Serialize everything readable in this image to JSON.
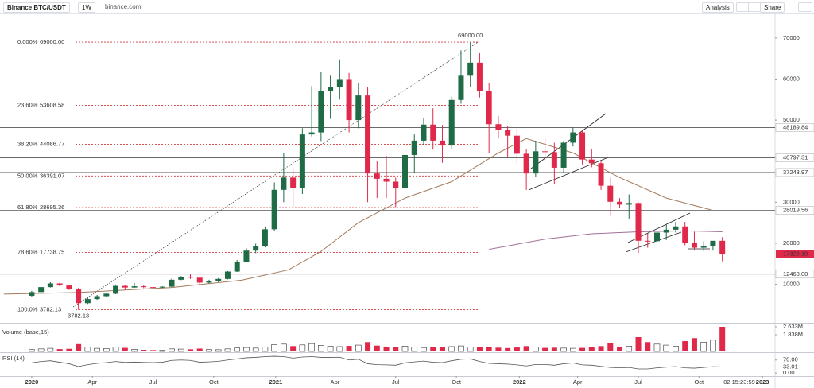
{
  "toolbar": {
    "symbol": "Binance BTC/USDT",
    "interval": "1W",
    "source": "binance.com",
    "analysis": "Analysis",
    "share": "Share"
  },
  "chart_data": [
    {
      "type": "candlestick",
      "x": [
        0,
        2,
        4,
        6,
        8,
        10,
        12,
        14,
        16,
        18,
        20,
        22,
        24,
        26,
        28,
        30,
        32,
        34,
        36,
        38,
        40,
        42,
        44,
        46,
        48,
        50,
        52,
        54,
        56,
        58,
        60,
        62,
        64,
        66,
        68,
        70,
        72,
        74,
        76,
        78,
        80,
        82,
        84,
        86,
        88,
        90,
        92,
        94,
        96,
        98,
        100,
        102,
        104,
        106,
        108,
        110,
        112,
        114,
        116,
        118,
        120,
        122,
        124,
        126,
        128,
        130,
        132,
        134,
        136,
        138,
        140,
        142,
        144,
        146,
        148
      ],
      "open": [
        7200,
        8100,
        9300,
        10200,
        9700,
        8900,
        5400,
        6400,
        7100,
        7700,
        9600,
        9200,
        9500,
        9300,
        9200,
        9400,
        11100,
        11800,
        11600,
        10400,
        10700,
        11300,
        13100,
        15500,
        18200,
        19200,
        23400,
        33000,
        36000,
        33500,
        46500,
        47000,
        57000,
        58000,
        60000,
        50000,
        56000,
        37000,
        35700,
        35000,
        33500,
        41500,
        45000,
        48900,
        45000,
        43800,
        54900,
        61000,
        64000,
        57000,
        49000,
        47500,
        46200,
        41800,
        37000,
        42400,
        42200,
        38400,
        44500,
        47000,
        40400,
        39500,
        34000,
        30100,
        29400,
        29800,
        20600,
        20500,
        22600,
        23300,
        24100,
        20000,
        18900,
        19400,
        20600
      ],
      "high": [
        8400,
        9400,
        10500,
        10400,
        9900,
        9100,
        7000,
        7400,
        7800,
        9900,
        9900,
        10300,
        9800,
        9500,
        9500,
        11400,
        12000,
        12400,
        11700,
        11100,
        11500,
        13200,
        15900,
        18800,
        19900,
        24000,
        34800,
        41900,
        38000,
        48000,
        58300,
        61700,
        61000,
        64800,
        61500,
        59000,
        58000,
        40000,
        41300,
        36000,
        42500,
        46500,
        50500,
        52900,
        48800,
        55700,
        67000,
        69000,
        66300,
        59000,
        51000,
        48500,
        47900,
        43000,
        45000,
        45800,
        44500,
        45000,
        48200,
        47700,
        42900,
        40000,
        36000,
        31000,
        31900,
        30000,
        22400,
        24200,
        24600,
        25200,
        25200,
        22800,
        20500,
        20400,
        21500
      ],
      "low": [
        7000,
        8000,
        9200,
        9500,
        8600,
        3782.13,
        5200,
        6200,
        6800,
        7600,
        8600,
        9100,
        9000,
        8900,
        9100,
        9300,
        11000,
        11300,
        9900,
        10200,
        10500,
        11200,
        13000,
        15300,
        17600,
        19000,
        23000,
        30000,
        28800,
        32000,
        46000,
        44900,
        50300,
        55000,
        47000,
        48000,
        30000,
        31000,
        31000,
        28800,
        29300,
        37300,
        43900,
        42800,
        39600,
        43000,
        54000,
        58000,
        55500,
        42000,
        45500,
        41000,
        39500,
        33000,
        36200,
        40000,
        34300,
        37200,
        43600,
        39200,
        38500,
        33000,
        26700,
        28600,
        26000,
        17600,
        18900,
        19300,
        20800,
        22600,
        19500,
        18200,
        18100,
        18200,
        15600
      ],
      "close": [
        8100,
        9300,
        10200,
        9700,
        8900,
        5400,
        6400,
        7100,
        7700,
        9600,
        9200,
        9500,
        9300,
        9200,
        9400,
        11100,
        11800,
        11600,
        10400,
        10700,
        11300,
        13100,
        15500,
        18200,
        19200,
        23400,
        33000,
        36000,
        33500,
        46500,
        47000,
        57000,
        58000,
        60000,
        50000,
        56000,
        37000,
        35700,
        35000,
        33500,
        41500,
        45000,
        48900,
        45000,
        43800,
        54900,
        61000,
        64000,
        57000,
        49000,
        47500,
        46200,
        41800,
        37000,
        42400,
        42200,
        38400,
        44500,
        47000,
        40400,
        39500,
        34000,
        30100,
        29400,
        29800,
        20600,
        20500,
        22600,
        23300,
        24100,
        20000,
        18900,
        19400,
        20600,
        17323.1
      ],
      "up_color": "#1e6b45",
      "down_color": "#e0294a",
      "xlim": [
        -6.8,
        159.3
      ],
      "ylim": [
        800,
        75400
      ],
      "yticks": [
        10000,
        20000,
        30000,
        50000,
        60000,
        70000
      ],
      "xticks": [
        {
          "value": 0,
          "label": "2020"
        },
        {
          "value": 13,
          "label": "Apr"
        },
        {
          "value": 26,
          "label": "Jul"
        },
        {
          "value": 39,
          "label": "Oct"
        },
        {
          "value": 52.3,
          "label": "2021"
        },
        {
          "value": 65,
          "label": "Apr"
        },
        {
          "value": 78,
          "label": "Jul"
        },
        {
          "value": 91,
          "label": "Oct"
        },
        {
          "value": 104.5,
          "label": "2022"
        },
        {
          "value": 117,
          "label": "Apr"
        },
        {
          "value": 130,
          "label": "Jul"
        },
        {
          "value": 143,
          "label": "Oct"
        },
        {
          "value": 156.6,
          "label": "2023"
        }
      ],
      "countdown": "02:15:23:59",
      "levels": [
        48189.84,
        40797.31,
        37243.97,
        28019.56,
        {
          "value": 12468,
          "label": "12468.00"
        }
      ],
      "last_price": {
        "value": 17323.1,
        "label": "17323.10"
      },
      "fib_color": "#d33a3a",
      "fib_levels": [
        {
          "ratio": "0.000%",
          "price": {
            "value": 69000,
            "label": "69000.00"
          }
        },
        {
          "ratio": "23.60%",
          "price": 53608.58
        },
        {
          "ratio": "38.20%",
          "price": 44086.77
        },
        {
          "ratio": "50.00%",
          "price": 36391.07
        },
        {
          "ratio": "61.80%",
          "price": 28695.36
        },
        {
          "ratio": "78.60%",
          "price": 17738.75
        },
        {
          "ratio": "100.0%",
          "price": 3782.13
        }
      ],
      "annotations": [
        {
          "value": 69000,
          "label": "69000.00"
        },
        3782.13
      ],
      "series": [
        {
          "color": "#a27a5c",
          "x": [
            -6,
            10,
            30,
            45,
            55,
            62,
            70,
            80,
            90,
            100,
            106,
            116,
            126,
            136,
            146
          ],
          "values": [
            7600,
            8000,
            9200,
            11000,
            13500,
            18000,
            25000,
            31000,
            35000,
            42000,
            45500,
            42000,
            36000,
            31000,
            28000
          ]
        },
        {
          "color": "#a0709a",
          "x": [
            98,
            110,
            120,
            130,
            140,
            148
          ],
          "values": [
            18500,
            21000,
            22300,
            22800,
            23000,
            22800
          ]
        }
      ]
    },
    {
      "type": "bar",
      "title": "Volume (base,15)",
      "x": [
        0,
        2,
        4,
        6,
        8,
        10,
        12,
        14,
        16,
        18,
        20,
        22,
        24,
        26,
        28,
        30,
        32,
        34,
        36,
        38,
        40,
        42,
        44,
        46,
        48,
        50,
        52,
        54,
        56,
        58,
        60,
        62,
        64,
        66,
        68,
        70,
        72,
        74,
        76,
        78,
        80,
        82,
        84,
        86,
        88,
        90,
        92,
        94,
        96,
        98,
        100,
        102,
        104,
        106,
        108,
        110,
        112,
        114,
        116,
        118,
        120,
        122,
        124,
        126,
        128,
        130,
        132,
        134,
        136,
        138,
        140,
        142,
        144,
        146,
        148
      ],
      "values": [
        350000,
        420000,
        480000,
        400000,
        430000,
        900000,
        620000,
        480000,
        450000,
        600000,
        520000,
        380000,
        330000,
        300000,
        280000,
        420000,
        400000,
        380000,
        450000,
        360000,
        340000,
        420000,
        520000,
        560000,
        500000,
        620000,
        850000,
        900000,
        700000,
        820000,
        950000,
        780000,
        700000,
        650000,
        720000,
        800000,
        1100000,
        750000,
        650000,
        620000,
        700000,
        600000,
        550000,
        620000,
        580000,
        650000,
        720000,
        600000,
        580000,
        620000,
        540000,
        500000,
        560000,
        700000,
        600000,
        520000,
        540000,
        500000,
        480000,
        520000,
        600000,
        700000,
        1000000,
        650000,
        700000,
        1600000,
        1100000,
        900000,
        800000,
        700000,
        1200000,
        1500000,
        1100000,
        1300000,
        2633000
      ],
      "ylim": [
        170000,
        2870000
      ],
      "yticks": [
        {
          "value": 1838000,
          "label": "1.838M"
        },
        {
          "value": 2633000,
          "label": "2.633M"
        }
      ]
    },
    {
      "type": "line",
      "title": "RSI (14)",
      "color": "#555555",
      "x": [
        0,
        2,
        4,
        6,
        8,
        10,
        12,
        14,
        16,
        18,
        20,
        22,
        24,
        26,
        28,
        30,
        32,
        34,
        36,
        38,
        40,
        42,
        44,
        46,
        48,
        50,
        52,
        54,
        56,
        58,
        60,
        62,
        64,
        66,
        68,
        70,
        72,
        74,
        76,
        78,
        80,
        82,
        84,
        86,
        88,
        90,
        92,
        94,
        96,
        98,
        100,
        102,
        104,
        106,
        108,
        110,
        112,
        114,
        116,
        118,
        120,
        122,
        124,
        126,
        128,
        130,
        132,
        134,
        136,
        138,
        140,
        142,
        144,
        146,
        148
      ],
      "values": [
        55,
        62,
        66,
        58,
        50,
        35,
        45,
        52,
        56,
        62,
        57,
        59,
        57,
        56,
        58,
        68,
        70,
        68,
        58,
        60,
        63,
        70,
        76,
        82,
        84,
        88,
        90,
        88,
        80,
        86,
        88,
        84,
        84,
        85,
        70,
        74,
        50,
        45,
        44,
        42,
        55,
        60,
        64,
        58,
        56,
        66,
        74,
        76,
        62,
        52,
        50,
        48,
        44,
        38,
        46,
        46,
        42,
        50,
        54,
        44,
        42,
        36,
        30,
        28,
        30,
        22,
        22,
        28,
        32,
        35,
        28,
        26,
        30,
        34,
        33.01
      ],
      "ylim": [
        -12,
        103
      ],
      "yticks": [
        {
          "value": 0,
          "label": "0.00"
        },
        {
          "value": 33.01,
          "label": "33.01"
        },
        {
          "value": 70,
          "label": "70.00"
        }
      ]
    }
  ]
}
